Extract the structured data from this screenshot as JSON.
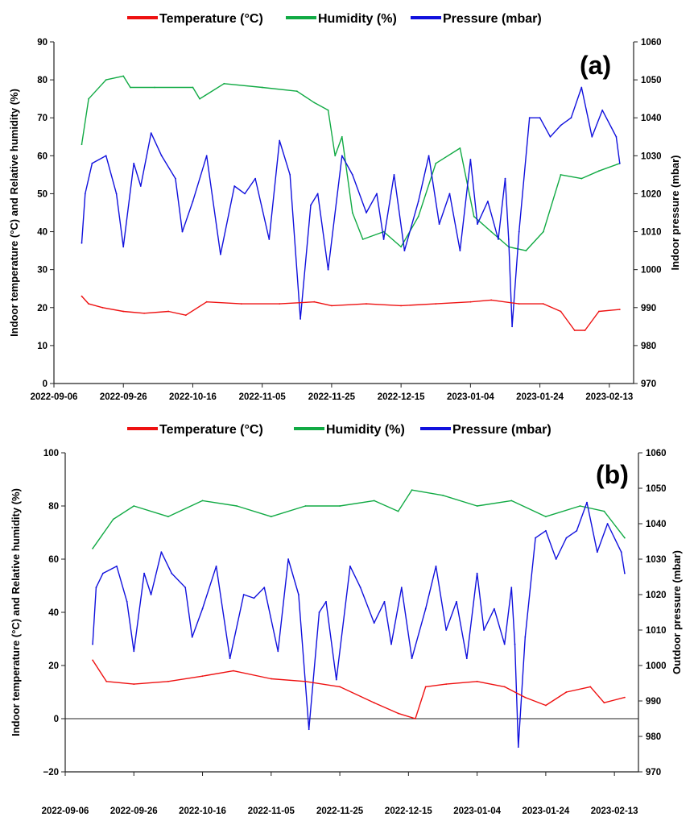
{
  "colors": {
    "temperature": "#ee1111",
    "humidity": "#11aa44",
    "pressure": "#1111dd"
  },
  "chart_data": [
    {
      "type": "line",
      "panel_label": "(a)",
      "xlabel": "",
      "ylabel": "Indoor temperature (°C) and Relative humidity (%)",
      "y2label": "Indoor pressure (mbar)",
      "ylim": [
        0,
        90
      ],
      "y2lim": [
        970,
        1060
      ],
      "yticks": [
        "0",
        "10",
        "20",
        "30",
        "40",
        "50",
        "60",
        "70",
        "80",
        "90"
      ],
      "y2ticks": [
        "970",
        "980",
        "990",
        "1000",
        "1010",
        "1020",
        "1030",
        "1040",
        "1050",
        "1060"
      ],
      "xticks": [
        "2022-09-06",
        "2022-09-26",
        "2022-10-16",
        "2022-11-05",
        "2022-11-25",
        "2022-12-15",
        "2023-01-04",
        "2023-01-24",
        "2023-02-13"
      ],
      "legend_position": "top-center",
      "series": [
        {
          "name": "Temperature (°C)",
          "color": "#ee1111",
          "axis": "left",
          "x": [
            "2022-09-14",
            "2022-09-16",
            "2022-09-20",
            "2022-09-26",
            "2022-10-02",
            "2022-10-09",
            "2022-10-14",
            "2022-10-20",
            "2022-10-30",
            "2022-11-10",
            "2022-11-20",
            "2022-11-25",
            "2022-12-05",
            "2022-12-15",
            "2022-12-25",
            "2023-01-04",
            "2023-01-10",
            "2023-01-18",
            "2023-01-25",
            "2023-01-30",
            "2023-02-03",
            "2023-02-06",
            "2023-02-10",
            "2023-02-16"
          ],
          "values": [
            23,
            21,
            20,
            19,
            18.5,
            19,
            18,
            21.5,
            21,
            21,
            21.5,
            20.5,
            21,
            20.5,
            21,
            21.5,
            22,
            21,
            21,
            19,
            14,
            14,
            19,
            19.5
          ]
        },
        {
          "name": "Humidity (%)",
          "color": "#11aa44",
          "axis": "left",
          "x": [
            "2022-09-14",
            "2022-09-16",
            "2022-09-21",
            "2022-09-26",
            "2022-09-28",
            "2022-10-05",
            "2022-10-16",
            "2022-10-18",
            "2022-10-25",
            "2022-11-05",
            "2022-11-15",
            "2022-11-20",
            "2022-11-24",
            "2022-11-26",
            "2022-11-28",
            "2022-12-01",
            "2022-12-04",
            "2022-12-10",
            "2022-12-15",
            "2022-12-20",
            "2022-12-25",
            "2023-01-01",
            "2023-01-05",
            "2023-01-10",
            "2023-01-15",
            "2023-01-20",
            "2023-01-25",
            "2023-01-30",
            "2023-02-05",
            "2023-02-10",
            "2023-02-16"
          ],
          "values": [
            63,
            75,
            80,
            81,
            78,
            78,
            78,
            75,
            79,
            78,
            77,
            74,
            72,
            60,
            65,
            45,
            38,
            40,
            36,
            44,
            58,
            62,
            44,
            40,
            36,
            35,
            40,
            55,
            54,
            56,
            58
          ]
        },
        {
          "name": "Pressure (mbar)",
          "color": "#1111dd",
          "axis": "right",
          "x": [
            "2022-09-14",
            "2022-09-15",
            "2022-09-17",
            "2022-09-21",
            "2022-09-24",
            "2022-09-26",
            "2022-09-29",
            "2022-10-01",
            "2022-10-04",
            "2022-10-07",
            "2022-10-11",
            "2022-10-13",
            "2022-10-16",
            "2022-10-20",
            "2022-10-24",
            "2022-10-28",
            "2022-10-31",
            "2022-11-03",
            "2022-11-07",
            "2022-11-10",
            "2022-11-13",
            "2022-11-16",
            "2022-11-19",
            "2022-11-21",
            "2022-11-24",
            "2022-11-28",
            "2022-12-01",
            "2022-12-05",
            "2022-12-08",
            "2022-12-10",
            "2022-12-13",
            "2022-12-16",
            "2022-12-20",
            "2022-12-23",
            "2022-12-26",
            "2022-12-29",
            "2023-01-01",
            "2023-01-04",
            "2023-01-06",
            "2023-01-09",
            "2023-01-12",
            "2023-01-14",
            "2023-01-15",
            "2023-01-16",
            "2023-01-18",
            "2023-01-21",
            "2023-01-24",
            "2023-01-27",
            "2023-01-30",
            "2023-02-02",
            "2023-02-05",
            "2023-02-08",
            "2023-02-11",
            "2023-02-15",
            "2023-02-16"
          ],
          "values": [
            1007,
            1020,
            1028,
            1030,
            1020,
            1006,
            1028,
            1022,
            1036,
            1030,
            1024,
            1010,
            1018,
            1030,
            1004,
            1022,
            1020,
            1024,
            1008,
            1034,
            1025,
            987,
            1017,
            1020,
            1000,
            1030,
            1025,
            1015,
            1020,
            1008,
            1025,
            1005,
            1018,
            1030,
            1012,
            1020,
            1005,
            1029,
            1012,
            1018,
            1008,
            1024,
            1008,
            985,
            1010,
            1040,
            1040,
            1035,
            1038,
            1040,
            1048,
            1035,
            1042,
            1035,
            1028
          ]
        }
      ]
    },
    {
      "type": "line",
      "panel_label": "(b)",
      "xlabel": "",
      "ylabel": "Indoor temperature (°C) and Relative humidity (%)",
      "y2label": "Outdoor pressure (mbar)",
      "ylim": [
        -20,
        100
      ],
      "y2lim": [
        970,
        1060
      ],
      "yticks": [
        "−20",
        "0",
        "20",
        "40",
        "60",
        "80",
        "100"
      ],
      "y2ticks": [
        "970",
        "980",
        "990",
        "1000",
        "1010",
        "1020",
        "1030",
        "1040",
        "1050",
        "1060"
      ],
      "xticks": [
        "2022-09-06",
        "2022-09-26",
        "2022-10-16",
        "2022-11-05",
        "2022-11-25",
        "2022-12-15",
        "2023-01-04",
        "2023-01-24",
        "2023-02-13"
      ],
      "legend_position": "top-center",
      "series": [
        {
          "name": "Temperature (°C)",
          "color": "#ee1111",
          "axis": "left",
          "x": [
            "2022-09-14",
            "2022-09-18",
            "2022-09-26",
            "2022-10-06",
            "2022-10-16",
            "2022-10-25",
            "2022-11-05",
            "2022-11-15",
            "2022-11-25",
            "2022-12-05",
            "2022-12-12",
            "2022-12-17",
            "2022-12-20",
            "2022-12-26",
            "2023-01-04",
            "2023-01-12",
            "2023-01-18",
            "2023-01-24",
            "2023-01-30",
            "2023-02-06",
            "2023-02-10",
            "2023-02-16"
          ],
          "values": [
            22,
            14,
            13,
            14,
            16,
            18,
            15,
            14,
            12,
            6,
            2,
            0,
            12,
            13,
            14,
            12,
            8,
            5,
            10,
            12,
            6,
            8
          ]
        },
        {
          "name": "Humidity (%)",
          "color": "#11aa44",
          "axis": "left",
          "x": [
            "2022-09-14",
            "2022-09-20",
            "2022-09-26",
            "2022-10-06",
            "2022-10-16",
            "2022-10-26",
            "2022-11-05",
            "2022-11-15",
            "2022-11-25",
            "2022-12-05",
            "2022-12-12",
            "2022-12-16",
            "2022-12-25",
            "2023-01-04",
            "2023-01-14",
            "2023-01-24",
            "2023-02-03",
            "2023-02-10",
            "2023-02-16"
          ],
          "values": [
            64,
            75,
            80,
            76,
            82,
            80,
            76,
            80,
            80,
            82,
            78,
            86,
            84,
            80,
            82,
            76,
            80,
            78,
            68
          ]
        },
        {
          "name": "Pressure (mbar)",
          "color": "#1111dd",
          "axis": "right",
          "x": [
            "2022-09-14",
            "2022-09-15",
            "2022-09-17",
            "2022-09-21",
            "2022-09-24",
            "2022-09-26",
            "2022-09-29",
            "2022-10-01",
            "2022-10-04",
            "2022-10-07",
            "2022-10-11",
            "2022-10-13",
            "2022-10-16",
            "2022-10-20",
            "2022-10-24",
            "2022-10-28",
            "2022-10-31",
            "2022-11-03",
            "2022-11-07",
            "2022-11-10",
            "2022-11-13",
            "2022-11-16",
            "2022-11-19",
            "2022-11-21",
            "2022-11-24",
            "2022-11-28",
            "2022-12-01",
            "2022-12-05",
            "2022-12-08",
            "2022-12-10",
            "2022-12-13",
            "2022-12-16",
            "2022-12-20",
            "2022-12-23",
            "2022-12-26",
            "2022-12-29",
            "2023-01-01",
            "2023-01-04",
            "2023-01-06",
            "2023-01-09",
            "2023-01-12",
            "2023-01-14",
            "2023-01-15",
            "2023-01-16",
            "2023-01-18",
            "2023-01-21",
            "2023-01-24",
            "2023-01-27",
            "2023-01-30",
            "2023-02-02",
            "2023-02-05",
            "2023-02-08",
            "2023-02-11",
            "2023-02-15",
            "2023-02-16"
          ],
          "values": [
            1006,
            1022,
            1026,
            1028,
            1018,
            1004,
            1026,
            1020,
            1032,
            1026,
            1022,
            1008,
            1016,
            1028,
            1002,
            1020,
            1019,
            1022,
            1004,
            1030,
            1020,
            982,
            1015,
            1018,
            996,
            1028,
            1022,
            1012,
            1018,
            1006,
            1022,
            1002,
            1016,
            1028,
            1010,
            1018,
            1002,
            1026,
            1010,
            1016,
            1006,
            1022,
            1006,
            977,
            1008,
            1036,
            1038,
            1030,
            1036,
            1038,
            1046,
            1032,
            1040,
            1032,
            1026
          ]
        }
      ]
    }
  ]
}
